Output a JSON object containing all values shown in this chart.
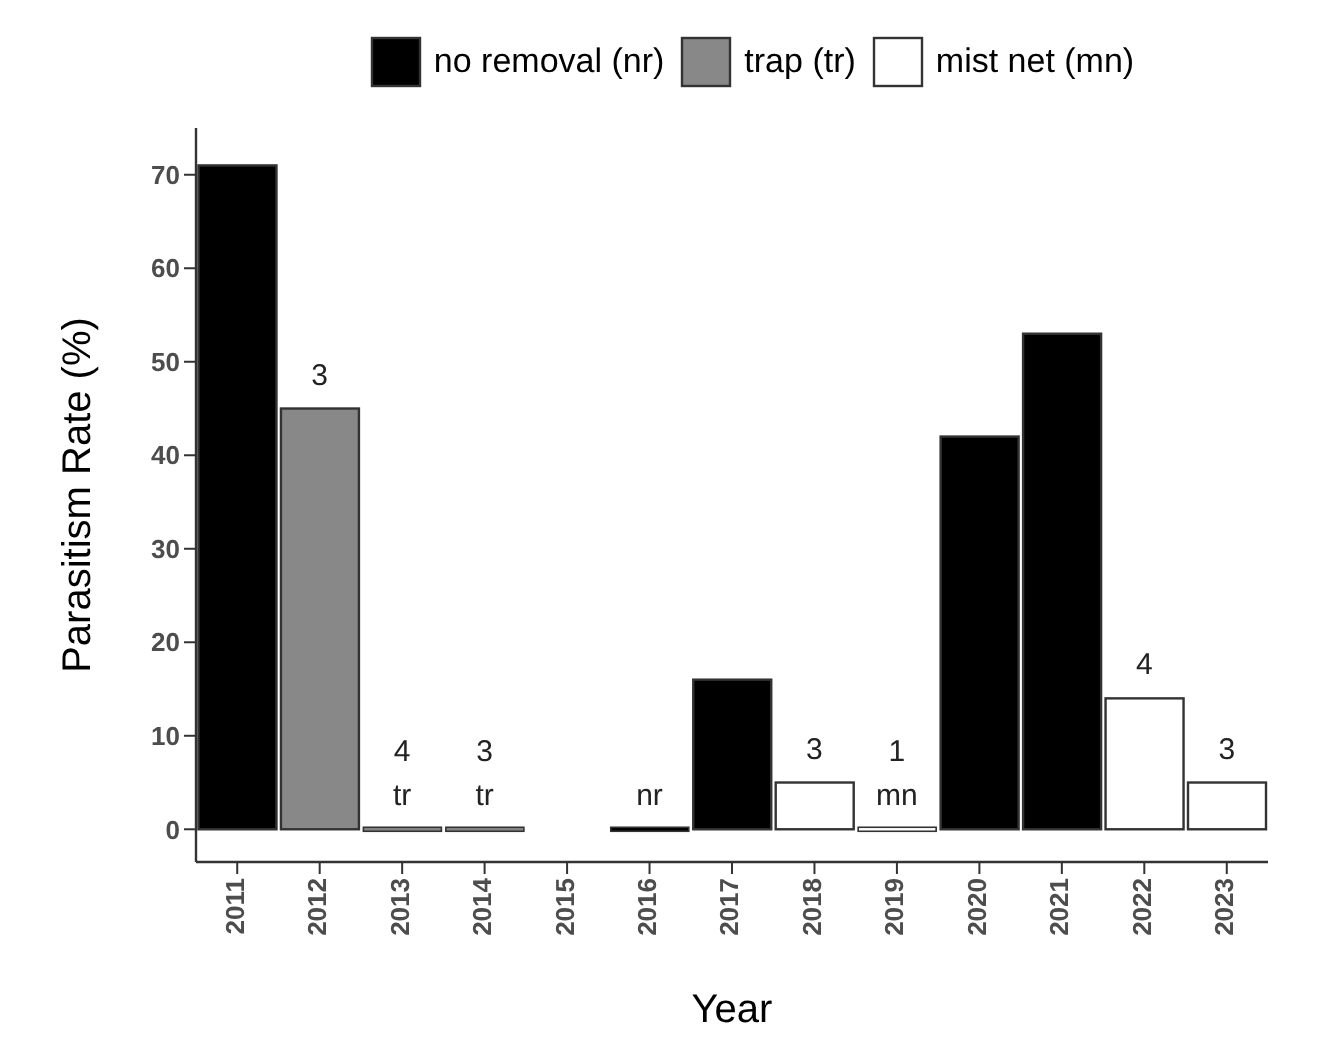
{
  "chart_data": {
    "type": "bar",
    "xlabel": "Year",
    "ylabel": "Parasitism Rate (%)",
    "categories": [
      "2011",
      "2012",
      "2013",
      "2014",
      "2015",
      "2016",
      "2017",
      "2018",
      "2019",
      "2020",
      "2021",
      "2022",
      "2023"
    ],
    "series": [
      {
        "name": "no removal (nr)",
        "color": "#000000",
        "values": [
          71,
          null,
          null,
          null,
          null,
          0,
          16,
          null,
          null,
          42,
          53,
          null,
          null
        ]
      },
      {
        "name": "trap (tr)",
        "color": "#888888",
        "values": [
          null,
          45,
          0,
          0,
          null,
          null,
          null,
          null,
          null,
          null,
          null,
          null,
          null
        ]
      },
      {
        "name": "mist net (mn)",
        "color": "#ffffff",
        "values": [
          null,
          null,
          null,
          null,
          null,
          null,
          null,
          5,
          0,
          null,
          null,
          14,
          5
        ]
      }
    ],
    "stacked": true,
    "ylim": [
      -3.5,
      75
    ],
    "yticks": [
      0,
      10,
      20,
      30,
      40,
      50,
      60,
      70
    ],
    "grid": false,
    "legend": "top",
    "annotations": [
      {
        "text": "3",
        "x": "2012",
        "y": 45
      },
      {
        "text": "tr",
        "x": "2013",
        "y": 0
      },
      {
        "text": "4",
        "x": "2013",
        "y": 0
      },
      {
        "text": "tr",
        "x": "2014",
        "y": 0
      },
      {
        "text": "3",
        "x": "2014",
        "y": 0
      },
      {
        "text": "nr",
        "x": "2016",
        "y": 0
      },
      {
        "text": "3",
        "x": "2018",
        "y": 5
      },
      {
        "text": "mn",
        "x": "2019",
        "y": 0
      },
      {
        "text": "1",
        "x": "2019",
        "y": 0
      },
      {
        "text": "4",
        "x": "2022",
        "y": 14
      },
      {
        "text": "3",
        "x": "2023",
        "y": 5
      }
    ]
  }
}
